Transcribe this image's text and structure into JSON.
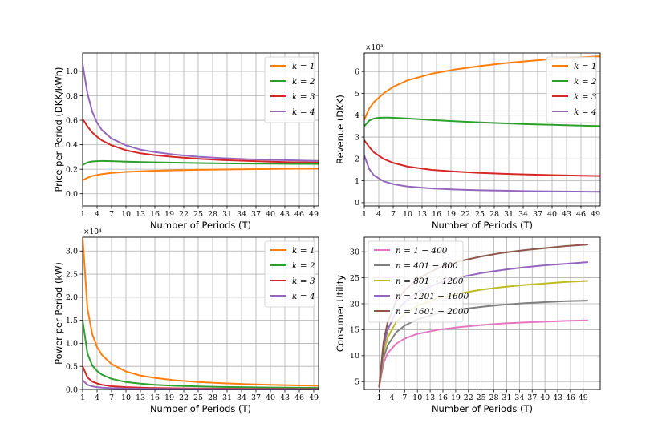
{
  "chart_data": [
    {
      "type": "line",
      "ylabel": "Price per Period (DKK/kWh)",
      "xlabel": "Number of Periods (T)",
      "x_ticks": [
        1,
        4,
        7,
        10,
        13,
        16,
        19,
        22,
        25,
        28,
        31,
        34,
        37,
        40,
        43,
        46,
        49
      ],
      "xlim": [
        1,
        50
      ],
      "ylim": [
        -0.1,
        1.15
      ],
      "y_ticks": [
        0.0,
        0.2,
        0.4,
        0.6,
        0.8,
        1.0
      ],
      "y_tick_labels": [
        "0.0",
        "0.2",
        "0.4",
        "0.6",
        "0.8",
        "1.0"
      ],
      "multiplier": "",
      "legend": "top-right",
      "series": [
        {
          "name": "k = 1",
          "color": "#ff7f0e",
          "x": [
            1,
            2,
            3,
            5,
            7,
            10,
            15,
            20,
            25,
            30,
            35,
            40,
            45,
            50
          ],
          "values": [
            0.11,
            0.13,
            0.145,
            0.16,
            0.17,
            0.178,
            0.186,
            0.191,
            0.195,
            0.198,
            0.2,
            0.202,
            0.204,
            0.205
          ]
        },
        {
          "name": "k = 2",
          "color": "#2ca02c",
          "x": [
            1,
            2,
            3,
            4,
            5,
            7,
            10,
            15,
            20,
            25,
            30,
            35,
            40,
            45,
            50
          ],
          "values": [
            0.235,
            0.255,
            0.263,
            0.266,
            0.267,
            0.266,
            0.262,
            0.257,
            0.253,
            0.25,
            0.248,
            0.246,
            0.245,
            0.244,
            0.243
          ]
        },
        {
          "name": "k = 3",
          "color": "#d62728",
          "x": [
            1,
            2,
            3,
            4,
            5,
            7,
            10,
            13,
            16,
            20,
            25,
            30,
            35,
            40,
            45,
            50
          ],
          "values": [
            0.61,
            0.55,
            0.5,
            0.465,
            0.435,
            0.395,
            0.355,
            0.33,
            0.315,
            0.3,
            0.285,
            0.275,
            0.268,
            0.262,
            0.257,
            0.254
          ]
        },
        {
          "name": "k = 4",
          "color": "#9467bd",
          "x": [
            1,
            2,
            3,
            4,
            5,
            7,
            10,
            13,
            16,
            20,
            25,
            30,
            35,
            40,
            45,
            50
          ],
          "values": [
            1.06,
            0.82,
            0.67,
            0.58,
            0.52,
            0.45,
            0.395,
            0.36,
            0.34,
            0.32,
            0.302,
            0.29,
            0.282,
            0.276,
            0.272,
            0.268
          ]
        }
      ]
    },
    {
      "type": "line",
      "ylabel": "Revenue (DKK)",
      "xlabel": "Number of Periods (T)",
      "x_ticks": [
        1,
        4,
        7,
        10,
        13,
        16,
        19,
        22,
        25,
        28,
        31,
        34,
        37,
        40,
        43,
        46,
        49
      ],
      "xlim": [
        1,
        50
      ],
      "ylim": [
        -0.15,
        6.85
      ],
      "y_ticks": [
        0,
        1,
        2,
        3,
        4,
        5,
        6
      ],
      "y_tick_labels": [
        "0",
        "1",
        "2",
        "3",
        "4",
        "5",
        "6"
      ],
      "multiplier": "×10³",
      "legend": "top-right",
      "series": [
        {
          "name": "k = 1",
          "color": "#ff7f0e",
          "x": [
            1,
            2,
            3,
            5,
            7,
            10,
            15,
            20,
            25,
            30,
            35,
            40,
            45,
            50
          ],
          "values": [
            3.8,
            4.3,
            4.6,
            5.0,
            5.3,
            5.6,
            5.9,
            6.1,
            6.25,
            6.38,
            6.48,
            6.57,
            6.64,
            6.7
          ]
        },
        {
          "name": "k = 2",
          "color": "#2ca02c",
          "x": [
            1,
            2,
            3,
            4,
            5,
            6,
            8,
            10,
            15,
            20,
            25,
            30,
            35,
            40,
            45,
            50
          ],
          "values": [
            3.5,
            3.75,
            3.85,
            3.88,
            3.89,
            3.89,
            3.87,
            3.85,
            3.78,
            3.72,
            3.67,
            3.63,
            3.59,
            3.56,
            3.53,
            3.5
          ]
        },
        {
          "name": "k = 3",
          "color": "#d62728",
          "x": [
            1,
            2,
            3,
            5,
            7,
            10,
            15,
            20,
            25,
            30,
            35,
            40,
            45,
            50
          ],
          "values": [
            2.85,
            2.55,
            2.3,
            2.0,
            1.82,
            1.65,
            1.5,
            1.42,
            1.36,
            1.32,
            1.29,
            1.26,
            1.24,
            1.22
          ]
        },
        {
          "name": "k = 4",
          "color": "#9467bd",
          "x": [
            1,
            2,
            3,
            5,
            7,
            10,
            15,
            20,
            25,
            30,
            35,
            40,
            45,
            50
          ],
          "values": [
            2.15,
            1.55,
            1.25,
            0.98,
            0.85,
            0.74,
            0.65,
            0.6,
            0.57,
            0.55,
            0.53,
            0.52,
            0.51,
            0.5
          ]
        }
      ]
    },
    {
      "type": "line",
      "ylabel": "Power per Period (kW)",
      "xlabel": "Number of Periods (T)",
      "x_ticks": [
        1,
        4,
        7,
        10,
        13,
        16,
        19,
        22,
        25,
        28,
        31,
        34,
        37,
        40,
        43,
        46,
        49
      ],
      "xlim": [
        1,
        50
      ],
      "ylim": [
        0,
        3.3
      ],
      "y_ticks": [
        0.0,
        0.5,
        1.0,
        1.5,
        2.0,
        2.5,
        3.0
      ],
      "y_tick_labels": [
        "0.0",
        "0.5",
        "1.0",
        "1.5",
        "2.0",
        "2.5",
        "3.0"
      ],
      "multiplier": "×10⁴",
      "legend": "top-right",
      "series": [
        {
          "name": "k = 1",
          "color": "#ff7f0e",
          "x": [
            1,
            2,
            3,
            4,
            5,
            7,
            10,
            13,
            16,
            20,
            25,
            30,
            35,
            40,
            45,
            50
          ],
          "values": [
            3.3,
            1.75,
            1.2,
            0.92,
            0.75,
            0.55,
            0.39,
            0.3,
            0.25,
            0.2,
            0.16,
            0.135,
            0.115,
            0.1,
            0.09,
            0.08
          ]
        },
        {
          "name": "k = 2",
          "color": "#2ca02c",
          "x": [
            1,
            2,
            3,
            4,
            5,
            7,
            10,
            13,
            16,
            20,
            25,
            30,
            35,
            40,
            45,
            50
          ],
          "values": [
            1.5,
            0.78,
            0.52,
            0.4,
            0.32,
            0.23,
            0.16,
            0.125,
            0.1,
            0.08,
            0.065,
            0.055,
            0.047,
            0.041,
            0.037,
            0.033
          ]
        },
        {
          "name": "k = 3",
          "color": "#d62728",
          "x": [
            1,
            2,
            3,
            4,
            5,
            7,
            10,
            15,
            20,
            25,
            30,
            40,
            50
          ],
          "values": [
            0.5,
            0.26,
            0.17,
            0.13,
            0.1,
            0.07,
            0.05,
            0.033,
            0.025,
            0.02,
            0.017,
            0.013,
            0.01
          ]
        },
        {
          "name": "k = 4",
          "color": "#9467bd",
          "x": [
            1,
            2,
            3,
            4,
            5,
            7,
            10,
            15,
            20,
            30,
            40,
            50
          ],
          "values": [
            0.2,
            0.1,
            0.068,
            0.05,
            0.04,
            0.028,
            0.02,
            0.013,
            0.01,
            0.007,
            0.005,
            0.004
          ]
        }
      ]
    },
    {
      "type": "line",
      "ylabel": "Consumer Utility",
      "xlabel": "Number of Periods (T)",
      "x_ticks": [
        1,
        4,
        7,
        10,
        13,
        16,
        19,
        22,
        25,
        28,
        31,
        34,
        37,
        40,
        43,
        46,
        49
      ],
      "xlim": [
        -2.5,
        53
      ],
      "ylim": [
        3.5,
        32.8
      ],
      "y_ticks": [
        5,
        10,
        15,
        20,
        25,
        30
      ],
      "y_tick_labels": [
        "5",
        "10",
        "15",
        "20",
        "25",
        "30"
      ],
      "multiplier": "",
      "legend": "top-left",
      "series": [
        {
          "name": "n = 1 − 400",
          "color": "#e377c2",
          "x": [
            1,
            2,
            3,
            5,
            7,
            10,
            15,
            20,
            25,
            30,
            35,
            40,
            45,
            50
          ],
          "values": [
            4,
            8.5,
            10.5,
            12.3,
            13.3,
            14.2,
            15.0,
            15.5,
            15.9,
            16.2,
            16.4,
            16.55,
            16.7,
            16.8
          ]
        },
        {
          "name": "n = 401 − 800",
          "color": "#7f7f7f",
          "x": [
            1,
            2,
            3,
            5,
            7,
            10,
            15,
            20,
            25,
            30,
            35,
            40,
            45,
            50
          ],
          "values": [
            4,
            9.5,
            12.0,
            14.5,
            15.8,
            17.0,
            18.2,
            18.9,
            19.4,
            19.8,
            20.1,
            20.3,
            20.5,
            20.6
          ]
        },
        {
          "name": "n = 801 − 1200",
          "color": "#bcbd22",
          "x": [
            1,
            2,
            3,
            5,
            7,
            10,
            15,
            20,
            25,
            30,
            35,
            40,
            45,
            50
          ],
          "values": [
            4,
            10.5,
            13.5,
            16.5,
            18.0,
            19.6,
            21.1,
            22.0,
            22.7,
            23.2,
            23.6,
            23.9,
            24.2,
            24.4
          ]
        },
        {
          "name": "n = 1201 − 1600",
          "color": "#9467bd",
          "x": [
            1,
            2,
            3,
            5,
            7,
            10,
            15,
            20,
            25,
            30,
            35,
            40,
            45,
            50
          ],
          "values": [
            4,
            11.5,
            15.0,
            18.5,
            20.3,
            22.2,
            24.0,
            25.1,
            25.9,
            26.5,
            27.0,
            27.4,
            27.7,
            28.0
          ]
        },
        {
          "name": "n = 1601 − 2000",
          "color": "#8c564b",
          "x": [
            1,
            2,
            3,
            5,
            7,
            10,
            15,
            20,
            25,
            30,
            35,
            40,
            45,
            50
          ],
          "values": [
            4,
            12.5,
            16.5,
            20.5,
            22.6,
            24.8,
            26.9,
            28.2,
            29.1,
            29.8,
            30.3,
            30.7,
            31.1,
            31.4
          ]
        }
      ]
    }
  ]
}
